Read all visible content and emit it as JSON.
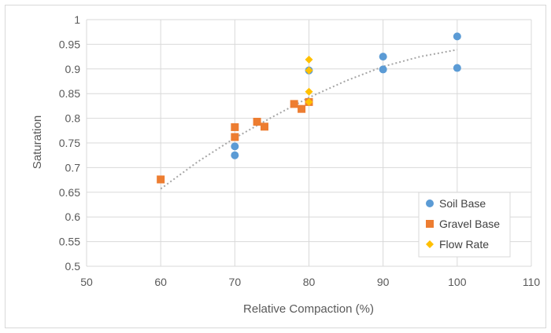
{
  "chart_data": {
    "type": "scatter",
    "title": "",
    "xlabel": "Relative Compaction (%)",
    "ylabel": "Saturation",
    "xlim": [
      50,
      110
    ],
    "ylim": [
      0.5,
      1
    ],
    "x_ticks": [
      50,
      60,
      70,
      80,
      90,
      100,
      110
    ],
    "y_ticks": [
      0.5,
      0.55,
      0.6,
      0.65,
      0.7,
      0.75,
      0.8,
      0.85,
      0.9,
      0.95,
      1
    ],
    "y_tick_labels": [
      "0.5",
      "0.55",
      "0.6",
      "0.65",
      "0.7",
      "0.75",
      "0.8",
      "0.85",
      "0.9",
      "0.95",
      "1"
    ],
    "grid": true,
    "legend_position": "bottom-right",
    "series": [
      {
        "name": "Soil Base",
        "marker": "circle",
        "color": "#5b9bd5",
        "points": [
          [
            70,
            0.743
          ],
          [
            70,
            0.725
          ],
          [
            80,
            0.897
          ],
          [
            90,
            0.925
          ],
          [
            90,
            0.899
          ],
          [
            100,
            0.966
          ],
          [
            100,
            0.902
          ]
        ]
      },
      {
        "name": "Gravel Base",
        "marker": "square",
        "color": "#ed7d31",
        "points": [
          [
            60,
            0.676
          ],
          [
            70,
            0.782
          ],
          [
            70,
            0.762
          ],
          [
            73,
            0.793
          ],
          [
            74,
            0.783
          ],
          [
            78,
            0.829
          ],
          [
            79,
            0.819
          ],
          [
            80,
            0.833
          ]
        ]
      },
      {
        "name": "Flow Rate",
        "marker": "diamond",
        "color": "#ffc000",
        "points": [
          [
            80,
            0.919
          ],
          [
            80,
            0.897
          ],
          [
            80,
            0.854
          ],
          [
            80,
            0.833
          ]
        ]
      }
    ],
    "trendline": {
      "style": "dotted",
      "color": "#a6a6a6",
      "x_range": [
        60,
        100
      ],
      "points": [
        [
          60,
          0.657
        ],
        [
          65,
          0.712
        ],
        [
          70,
          0.76
        ],
        [
          75,
          0.802
        ],
        [
          80,
          0.842
        ],
        [
          85,
          0.876
        ],
        [
          90,
          0.905
        ],
        [
          95,
          0.925
        ],
        [
          100,
          0.939
        ]
      ]
    }
  }
}
